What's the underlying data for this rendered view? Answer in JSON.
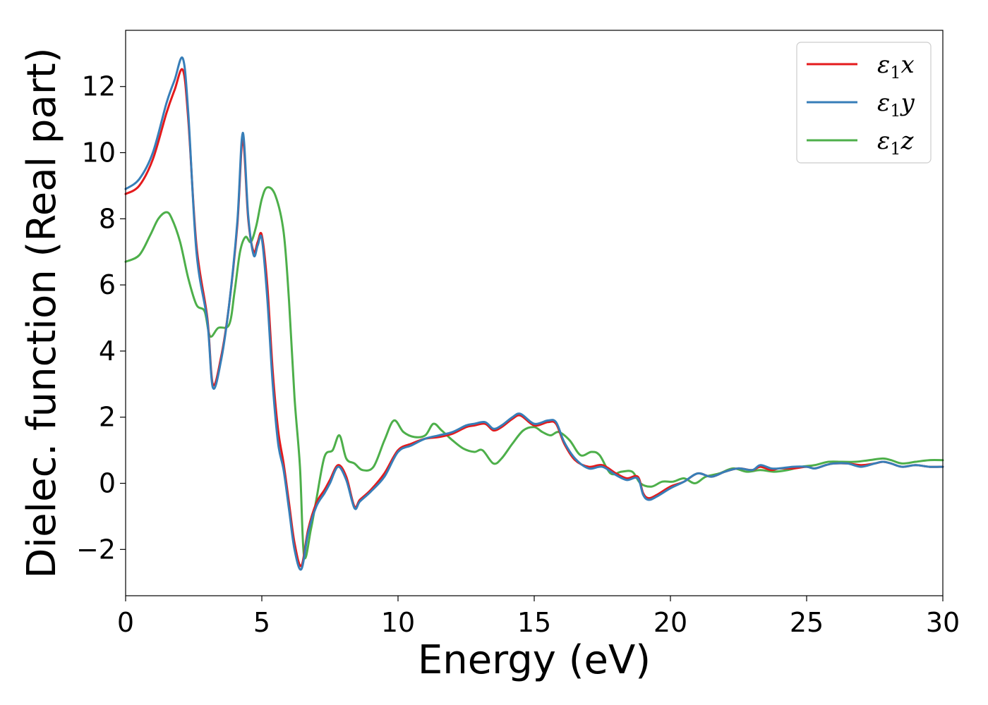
{
  "chart_data": {
    "type": "line",
    "title": "",
    "xlabel": "Energy (eV)",
    "ylabel": "Dielec. function (Real part)",
    "xlim": [
      0,
      30
    ],
    "ylim": [
      -3.4,
      13.7
    ],
    "xticks": [
      0,
      5,
      10,
      15,
      20,
      25,
      30
    ],
    "xtick_labels": [
      "0",
      "5",
      "10",
      "15",
      "20",
      "25",
      "30"
    ],
    "yticks": [
      -2,
      0,
      2,
      4,
      6,
      8,
      10,
      12
    ],
    "ytick_labels": [
      "−2",
      "0",
      "2",
      "4",
      "6",
      "8",
      "10",
      "12"
    ],
    "grid": false,
    "legend_position": "top-right",
    "series": [
      {
        "name": "ε₁x",
        "legend_main": "ε",
        "legend_sub": "1",
        "legend_var": "x",
        "color": "#e41a1c",
        "x": [
          0,
          0.5,
          1,
          1.5,
          1.8,
          2.1,
          2.3,
          2.6,
          3.0,
          3.2,
          3.5,
          3.8,
          4.1,
          4.3,
          4.5,
          4.7,
          4.85,
          5.0,
          5.2,
          5.4,
          5.6,
          5.8,
          6.0,
          6.2,
          6.45,
          6.7,
          7.0,
          7.3,
          7.5,
          7.8,
          8.1,
          8.4,
          8.6,
          9.0,
          9.5,
          10,
          10.5,
          11,
          11.5,
          12,
          12.5,
          12.8,
          13.2,
          13.5,
          13.8,
          14.2,
          14.5,
          15,
          15.5,
          15.8,
          16.1,
          16.5,
          17,
          17.5,
          18,
          18.4,
          18.8,
          19.0,
          19.2,
          19.5,
          20,
          20.5,
          21,
          21.5,
          22,
          22.5,
          23,
          23.3,
          23.7,
          24,
          24.5,
          25,
          25.3,
          25.7,
          26,
          26.5,
          27,
          27.5,
          27.8,
          28.1,
          28.5,
          29,
          29.5,
          30
        ],
        "y": [
          8.75,
          9.0,
          9.8,
          11.2,
          11.9,
          12.5,
          11.0,
          7.2,
          5.0,
          3.0,
          3.8,
          5.4,
          7.8,
          10.4,
          8.0,
          7.0,
          7.3,
          7.5,
          6.0,
          3.4,
          1.6,
          0.6,
          -0.6,
          -1.8,
          -2.5,
          -1.4,
          -0.6,
          -0.2,
          0.1,
          0.55,
          0.2,
          -0.7,
          -0.5,
          -0.2,
          0.3,
          1.0,
          1.2,
          1.35,
          1.4,
          1.5,
          1.7,
          1.75,
          1.8,
          1.6,
          1.7,
          1.95,
          2.05,
          1.75,
          1.85,
          1.8,
          1.2,
          0.7,
          0.5,
          0.55,
          0.3,
          0.15,
          0.2,
          -0.3,
          -0.45,
          -0.35,
          -0.1,
          0.05,
          0.3,
          0.2,
          0.35,
          0.45,
          0.4,
          0.5,
          0.4,
          0.45,
          0.45,
          0.5,
          0.45,
          0.55,
          0.6,
          0.6,
          0.55,
          0.6,
          0.65,
          0.6,
          0.5,
          0.55,
          0.5,
          0.5
        ]
      },
      {
        "name": "ε₁y",
        "legend_main": "ε",
        "legend_sub": "1",
        "legend_var": "y",
        "color": "#377eb8",
        "x": [
          0,
          0.5,
          1,
          1.5,
          1.8,
          2.1,
          2.3,
          2.6,
          3.0,
          3.2,
          3.5,
          3.8,
          4.1,
          4.3,
          4.5,
          4.7,
          4.85,
          5.0,
          5.2,
          5.4,
          5.6,
          5.8,
          6.0,
          6.2,
          6.45,
          6.7,
          7.0,
          7.3,
          7.5,
          7.8,
          8.1,
          8.4,
          8.6,
          9.0,
          9.5,
          10,
          10.5,
          11,
          11.5,
          12,
          12.5,
          12.8,
          13.2,
          13.5,
          13.8,
          14.2,
          14.5,
          15,
          15.5,
          15.8,
          16.1,
          16.5,
          17,
          17.5,
          18,
          18.4,
          18.8,
          19.0,
          19.2,
          19.5,
          20,
          20.5,
          21,
          21.5,
          22,
          22.5,
          23,
          23.3,
          23.7,
          24,
          24.5,
          25,
          25.3,
          25.7,
          26,
          26.5,
          27,
          27.5,
          27.8,
          28.1,
          28.5,
          29,
          29.5,
          30
        ],
        "y": [
          8.9,
          9.2,
          10.0,
          11.5,
          12.2,
          12.85,
          11.2,
          7.0,
          4.9,
          2.9,
          3.7,
          5.4,
          7.9,
          10.6,
          8.1,
          6.9,
          7.2,
          7.4,
          5.6,
          3.0,
          1.2,
          0.4,
          -0.8,
          -2.0,
          -2.6,
          -1.5,
          -0.7,
          -0.3,
          0.0,
          0.5,
          0.1,
          -0.75,
          -0.55,
          -0.25,
          0.2,
          0.95,
          1.15,
          1.35,
          1.45,
          1.55,
          1.75,
          1.8,
          1.85,
          1.65,
          1.75,
          2.0,
          2.1,
          1.8,
          1.9,
          1.85,
          1.25,
          0.75,
          0.45,
          0.5,
          0.25,
          0.1,
          0.15,
          -0.35,
          -0.5,
          -0.4,
          -0.15,
          0.05,
          0.3,
          0.2,
          0.35,
          0.45,
          0.4,
          0.55,
          0.45,
          0.45,
          0.5,
          0.5,
          0.45,
          0.55,
          0.6,
          0.6,
          0.5,
          0.6,
          0.65,
          0.6,
          0.5,
          0.55,
          0.5,
          0.5
        ]
      },
      {
        "name": "ε₁z",
        "legend_main": "ε",
        "legend_sub": "1",
        "legend_var": "z",
        "color": "#4daf4a",
        "x": [
          0,
          0.5,
          0.9,
          1.2,
          1.5,
          1.7,
          2.0,
          2.3,
          2.6,
          2.9,
          3.1,
          3.4,
          3.8,
          4.0,
          4.2,
          4.4,
          4.6,
          4.8,
          5.0,
          5.2,
          5.5,
          5.8,
          6.0,
          6.2,
          6.4,
          6.55,
          6.8,
          7.0,
          7.3,
          7.6,
          7.85,
          8.1,
          8.4,
          8.7,
          9.1,
          9.5,
          9.85,
          10.2,
          10.6,
          11.0,
          11.3,
          11.6,
          12.0,
          12.4,
          12.8,
          13.1,
          13.5,
          13.8,
          14.2,
          14.6,
          15.0,
          15.3,
          15.6,
          15.9,
          16.3,
          16.7,
          17.1,
          17.4,
          17.8,
          18.2,
          18.6,
          18.9,
          19.3,
          19.7,
          20.1,
          20.5,
          20.9,
          21.3,
          21.8,
          22.3,
          22.8,
          23.3,
          23.8,
          24.3,
          24.8,
          25.3,
          25.8,
          26.3,
          26.8,
          27.3,
          27.8,
          28.1,
          28.5,
          29.0,
          29.5,
          30
        ],
        "y": [
          6.7,
          6.9,
          7.5,
          8.0,
          8.2,
          8.0,
          7.3,
          6.2,
          5.4,
          5.2,
          4.45,
          4.7,
          4.8,
          5.8,
          7.0,
          7.45,
          7.3,
          7.8,
          8.6,
          8.95,
          8.7,
          7.6,
          5.5,
          2.6,
          0.5,
          -2.2,
          -1.4,
          -0.5,
          0.8,
          1.0,
          1.45,
          0.75,
          0.6,
          0.4,
          0.5,
          1.3,
          1.9,
          1.55,
          1.4,
          1.45,
          1.8,
          1.6,
          1.3,
          1.05,
          0.95,
          1.0,
          0.6,
          0.75,
          1.2,
          1.6,
          1.7,
          1.55,
          1.45,
          1.55,
          1.3,
          0.85,
          0.95,
          0.85,
          0.3,
          0.35,
          0.35,
          0.0,
          -0.1,
          0.05,
          0.05,
          0.15,
          0.0,
          0.2,
          0.3,
          0.45,
          0.35,
          0.4,
          0.35,
          0.4,
          0.5,
          0.55,
          0.65,
          0.65,
          0.65,
          0.7,
          0.75,
          0.7,
          0.6,
          0.65,
          0.7,
          0.7
        ]
      }
    ]
  }
}
